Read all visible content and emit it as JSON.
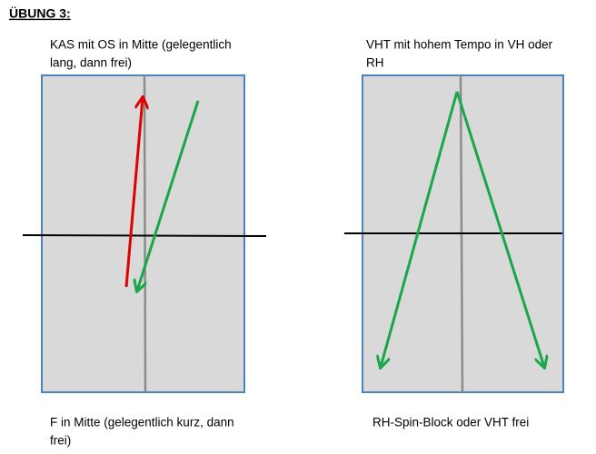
{
  "header": {
    "title": "ÜBUNG 3:"
  },
  "exercises": [
    {
      "top_label": [
        "KAS mit OS in Mitte (gelegentlich",
        "lang, dann frei)"
      ],
      "bottom_label": [
        "F in Mitte (gelegentlich kurz, dann",
        "frei)"
      ]
    },
    {
      "top_label": [
        "VHT mit hohem Tempo in VH oder",
        "RH"
      ],
      "bottom_label": [
        "RH-Spin-Block oder VHT frei"
      ]
    }
  ]
}
